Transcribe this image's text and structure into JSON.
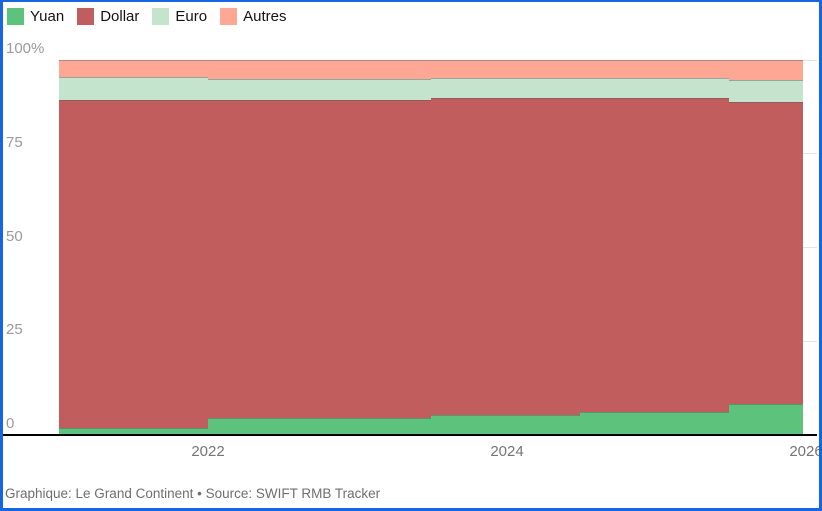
{
  "caption": "Graphique: Le Grand Continent • Source: SWIFT RMB Tracker",
  "legend": {
    "items": [
      {
        "label": "Yuan",
        "color": "#5dc27c"
      },
      {
        "label": "Dollar",
        "color": "#c25d5d"
      },
      {
        "label": "Euro",
        "color": "#c5e4ce"
      },
      {
        "label": "Autres",
        "color": "#ffa795"
      }
    ]
  },
  "y_axis": {
    "labels": [
      "100%",
      "75",
      "50",
      "25",
      "0"
    ],
    "values": [
      100,
      75,
      50,
      25,
      0
    ]
  },
  "x_axis": {
    "labels": [
      "2022",
      "2024",
      "2026"
    ],
    "values": [
      2022,
      2024,
      2026
    ]
  },
  "colors": {
    "border": "#1665e2",
    "gridline": "#e4e4e4",
    "axis_line": "#000000",
    "y_label_text": "#9b9b9b",
    "x_label_text": "#757575",
    "caption_text": "#6f6f6f"
  },
  "chart_data": {
    "type": "area",
    "stacking": "percent",
    "interpolation": "step",
    "title": "",
    "xlabel": "",
    "ylabel": "",
    "x_range": [
      2021,
      2026
    ],
    "ylim": [
      0,
      100
    ],
    "grid": true,
    "legend_position": "top-left",
    "series_order": [
      "Yuan",
      "Dollar",
      "Euro",
      "Autres"
    ],
    "segments": [
      {
        "from": 2021.0,
        "to": 2022.0,
        "values": {
          "Yuan": 1.7,
          "Dollar": 87.5,
          "Euro": 6.1,
          "Autres": 4.7
        }
      },
      {
        "from": 2022.0,
        "to": 2023.5,
        "values": {
          "Yuan": 4.3,
          "Dollar": 84.8,
          "Euro": 5.8,
          "Autres": 5.1
        }
      },
      {
        "from": 2023.5,
        "to": 2024.5,
        "values": {
          "Yuan": 5.1,
          "Dollar": 84.6,
          "Euro": 5.4,
          "Autres": 4.9
        }
      },
      {
        "from": 2024.5,
        "to": 2025.5,
        "values": {
          "Yuan": 6.1,
          "Dollar": 83.6,
          "Euro": 5.5,
          "Autres": 4.8
        }
      },
      {
        "from": 2025.5,
        "to": 2026.0,
        "values": {
          "Yuan": 8.1,
          "Dollar": 80.7,
          "Euro": 5.7,
          "Autres": 5.5
        }
      }
    ]
  }
}
